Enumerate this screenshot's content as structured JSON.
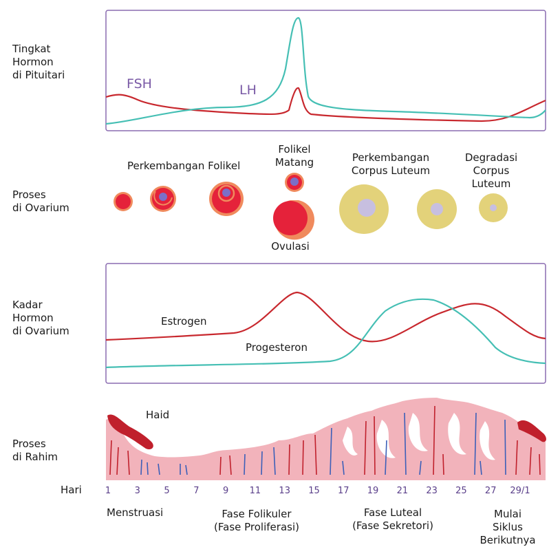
{
  "rows": {
    "pituitary": "Tingkat\nHormon\ndi Pituitari",
    "ovary_process": "Proses\ndi Ovarium",
    "ovary_hormone": "Kadar\nHormon\ndi Ovarium",
    "uterus": "Proses\ndi Rahim"
  },
  "hormones_top": {
    "fsh": "FSH",
    "lh": "LH"
  },
  "ovary_labels": {
    "follicle_dev": "Perkembangan Folikel",
    "mature": "Folikel\nMatang",
    "ovulation": "Ovulasi",
    "corpus_dev": "Perkembangan\nCorpus Luteum",
    "corpus_deg": "Degradasi\nCorpus\nLuteum"
  },
  "hormones_bottom": {
    "estrogen": "Estrogen",
    "progesterone": "Progesteron"
  },
  "uterus_labels": {
    "menstruation": "Haid"
  },
  "day_axis": {
    "label": "Hari",
    "ticks": [
      "1",
      "3",
      "5",
      "7",
      "9",
      "11",
      "13",
      "15",
      "17",
      "19",
      "21",
      "23",
      "25",
      "27",
      "29/1"
    ]
  },
  "phases": {
    "menstruation": "Menstruasi",
    "follicular": "Fase Folikuler\n(Fase Proliferasi)",
    "luteal": "Fase Luteal\n(Fase Sekretori)",
    "next_cycle": "Mulai Siklus\nBerikutnya"
  },
  "colors": {
    "frame": "#8a6bb0",
    "fsh_estrogen": "#c8282e",
    "lh_progesterone": "#45bfb4",
    "follicle": "#e5223a",
    "follicle_rim": "#f08a5d",
    "oocyte": "#7b6fc6",
    "corpus": "#e3d27a",
    "corpus_core": "#c7bfe0",
    "endometrium": "#f2b3bb",
    "blood": "#c0202c"
  }
}
